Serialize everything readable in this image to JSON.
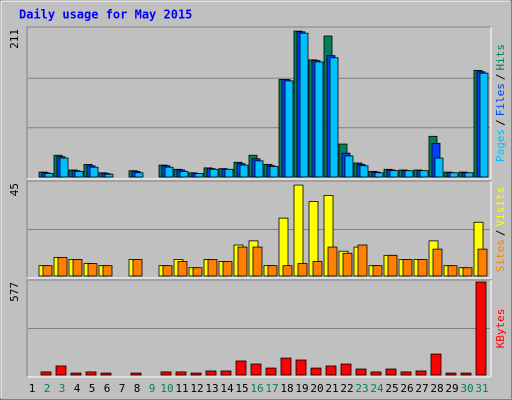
{
  "chart_data": [
    {
      "type": "bar",
      "title": "Daily usage for May 2015",
      "ylim": [
        0,
        211
      ],
      "yticks": [
        211
      ],
      "gridlines": [
        70.3,
        140.7
      ],
      "separator": "/",
      "series": [
        {
          "name": "Hits",
          "color": "#00805c",
          "values": [
            0,
            7,
            31,
            10,
            18,
            6,
            0,
            9,
            0,
            17,
            11,
            6,
            13,
            12,
            21,
            31,
            18,
            139,
            208,
            167,
            201,
            47,
            20,
            8,
            11,
            10,
            10,
            58,
            7,
            7,
            152
          ]
        },
        {
          "name": "Files",
          "color": "#0040ff",
          "values": [
            0,
            6,
            29,
            9,
            16,
            5,
            0,
            8,
            0,
            16,
            10,
            5,
            12,
            11,
            19,
            26,
            16,
            139,
            207,
            166,
            173,
            34,
            18,
            7,
            10,
            9,
            9,
            48,
            6,
            6,
            150
          ]
        },
        {
          "name": "Pages",
          "color": "#00c0ff",
          "values": [
            0,
            5,
            27,
            8,
            14,
            4,
            0,
            6,
            0,
            14,
            8,
            5,
            11,
            11,
            17,
            23,
            15,
            137,
            205,
            164,
            170,
            30,
            16,
            6,
            9,
            9,
            9,
            27,
            6,
            6,
            148
          ]
        }
      ]
    },
    {
      "type": "bar",
      "ylim": [
        0,
        45
      ],
      "yticks": [
        45
      ],
      "gridlines": [
        22.5
      ],
      "separator": "/",
      "series": [
        {
          "name": "Visits",
          "color": "#ffff00",
          "values": [
            0,
            5,
            9,
            8,
            6,
            5,
            0,
            8,
            0,
            5,
            8,
            4,
            8,
            7,
            15,
            17,
            5,
            28,
            44,
            36,
            39,
            12,
            14,
            5,
            10,
            8,
            8,
            17,
            5,
            4,
            26
          ]
        },
        {
          "name": "Sites",
          "color": "#ff8000",
          "values": [
            0,
            5,
            9,
            8,
            6,
            5,
            0,
            8,
            0,
            5,
            7,
            4,
            8,
            7,
            14,
            14,
            5,
            5,
            6,
            7,
            14,
            11,
            15,
            5,
            10,
            8,
            8,
            13,
            5,
            4,
            13
          ]
        }
      ]
    },
    {
      "type": "bar",
      "ylim": [
        0,
        577
      ],
      "yticks": [
        577
      ],
      "gridlines": [
        288.5
      ],
      "series": [
        {
          "name": "KBytes",
          "color": "#ff0000",
          "values": [
            0,
            19,
            56,
            12,
            19,
            12,
            0,
            12,
            0,
            19,
            19,
            12,
            25,
            25,
            87,
            68,
            43,
            105,
            93,
            43,
            56,
            68,
            37,
            19,
            37,
            19,
            25,
            130,
            12,
            12,
            577
          ]
        }
      ],
      "categories": [
        "1",
        "2",
        "3",
        "4",
        "5",
        "6",
        "7",
        "8",
        "9",
        "10",
        "11",
        "12",
        "13",
        "14",
        "15",
        "16",
        "17",
        "18",
        "19",
        "20",
        "21",
        "22",
        "23",
        "24",
        "25",
        "26",
        "27",
        "28",
        "29",
        "30",
        "31"
      ],
      "x_label_colors": [
        "#000000",
        "#00805c",
        "#00805c",
        "#000000",
        "#000000",
        "#000000",
        "#000000",
        "#000000",
        "#00805c",
        "#00805c",
        "#000000",
        "#000000",
        "#000000",
        "#000000",
        "#000000",
        "#00805c",
        "#00805c",
        "#000000",
        "#000000",
        "#000000",
        "#000000",
        "#000000",
        "#00805c",
        "#00805c",
        "#000000",
        "#000000",
        "#000000",
        "#000000",
        "#000000",
        "#00805c",
        "#00805c"
      ]
    }
  ]
}
